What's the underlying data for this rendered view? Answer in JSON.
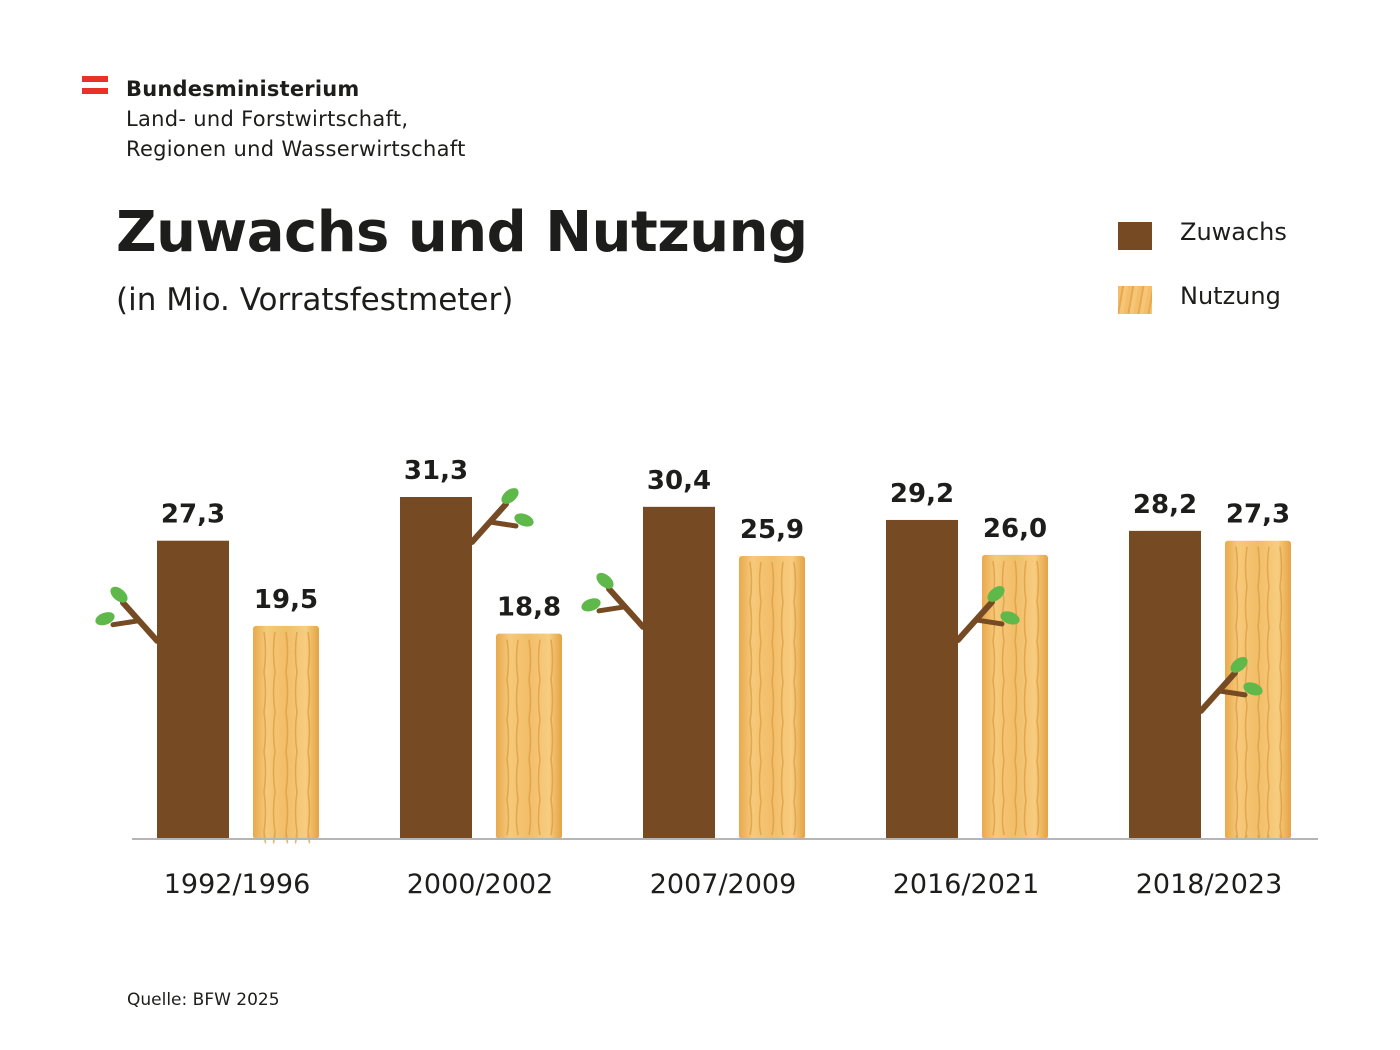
{
  "header": {
    "ministry_line1": "Bundesministerium",
    "ministry_line2": "Land- und Forstwirtschaft,",
    "ministry_line3": "Regionen und Wasserwirtschaft"
  },
  "source": "Quelle: BFW 2025",
  "colors": {
    "zuwachs": "#764b24",
    "nutzung": "#f2be6b",
    "flag_red": "#e6332a",
    "leaf": "#5fb84a"
  },
  "chart_data": {
    "type": "bar",
    "title": "Zuwachs und Nutzung",
    "subtitle": "(in Mio. Vorratsfestmeter)",
    "categories": [
      "1992/1996",
      "2000/2002",
      "2007/2009",
      "2016/2021",
      "2018/2023"
    ],
    "series": [
      {
        "name": "Zuwachs",
        "values": [
          27.3,
          31.3,
          30.4,
          29.2,
          28.2
        ],
        "labels": [
          "27,3",
          "31,3",
          "30,4",
          "29,2",
          "28,2"
        ]
      },
      {
        "name": "Nutzung",
        "values": [
          19.5,
          18.8,
          25.9,
          26.0,
          27.3
        ],
        "labels": [
          "19,5",
          "18,8",
          "25,9",
          "26,0",
          "27,3"
        ]
      }
    ],
    "ylim": [
      0,
      31.3
    ],
    "grid": false,
    "legend": "top-right"
  }
}
